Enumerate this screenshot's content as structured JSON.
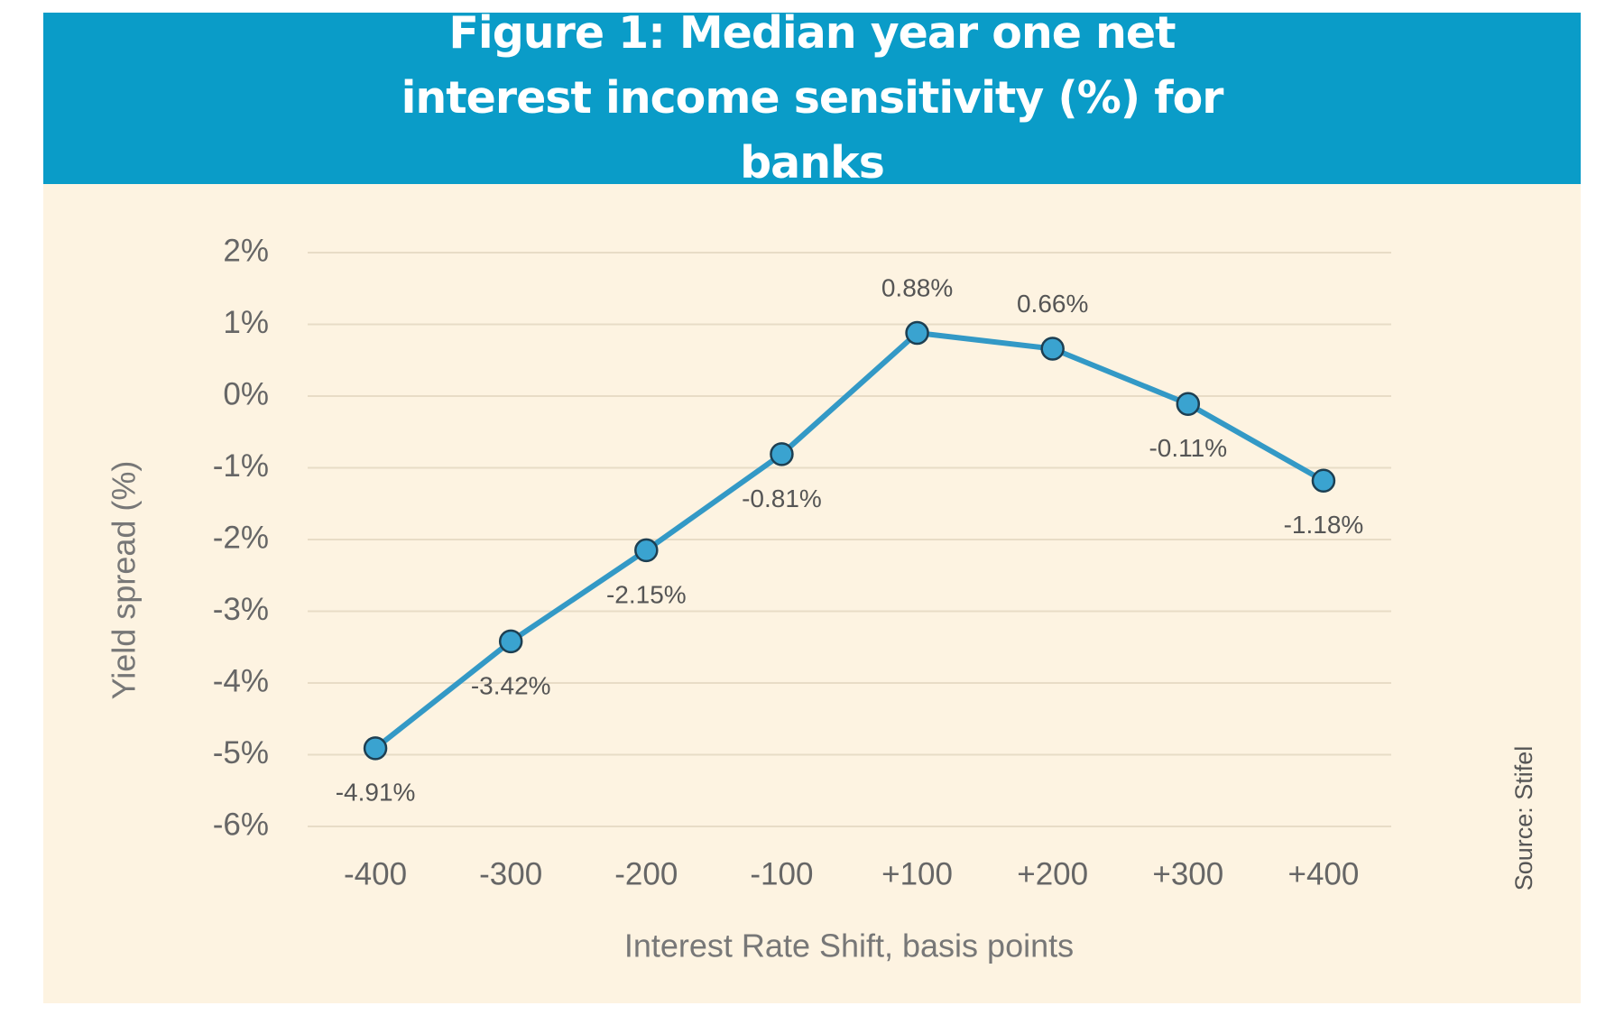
{
  "chart_data": {
    "type": "line",
    "title": "Figure 1: Median year one net interest income sensitivity (%) for banks",
    "y_label": "Yield spread (%)",
    "x_label": "Interest Rate Shift, basis points",
    "source": "Source: Stifel",
    "categories": [
      "-400",
      "-300",
      "-200",
      "-100",
      "+100",
      "+200",
      "+300",
      "+400"
    ],
    "values": [
      -4.91,
      -3.42,
      -2.15,
      -0.81,
      0.88,
      0.66,
      -0.11,
      -1.18
    ],
    "value_labels": [
      "-4.91%",
      "-3.42%",
      "-2.15%",
      "-0.81%",
      "0.88%",
      "0.66%",
      "-0.11%",
      "-1.18%"
    ],
    "color": "#3399c6",
    "ylim": [
      -6,
      2
    ],
    "yticks": [
      {
        "value": -6,
        "label": "-6%"
      },
      {
        "value": -5,
        "label": "-5%"
      },
      {
        "value": -4,
        "label": "-4%"
      },
      {
        "value": -3,
        "label": "-3%"
      },
      {
        "value": -2,
        "label": "-2%"
      },
      {
        "value": -1,
        "label": "-1%"
      },
      {
        "value": 0,
        "label": "0%"
      },
      {
        "value": 1,
        "label": "1%"
      },
      {
        "value": 2,
        "label": "2%"
      }
    ],
    "grid": true
  }
}
